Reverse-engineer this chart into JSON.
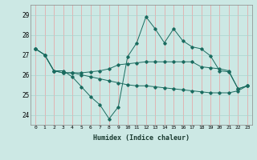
{
  "title": "",
  "xlabel": "Humidex (Indice chaleur)",
  "ylabel": "",
  "background_color": "#cce8e4",
  "grid_color_h": "#aad4cf",
  "grid_color_v": "#e8a0a0",
  "line_color": "#1a6b5f",
  "xlim": [
    -0.5,
    23.5
  ],
  "ylim": [
    23.5,
    29.5
  ],
  "yticks": [
    24,
    25,
    26,
    27,
    28,
    29
  ],
  "xticks": [
    0,
    1,
    2,
    3,
    4,
    5,
    6,
    7,
    8,
    9,
    10,
    11,
    12,
    13,
    14,
    15,
    16,
    17,
    18,
    19,
    20,
    21,
    22,
    23
  ],
  "series": [
    [
      27.3,
      27.0,
      26.2,
      26.2,
      25.9,
      25.4,
      24.9,
      24.5,
      23.8,
      24.4,
      26.9,
      27.6,
      28.9,
      28.3,
      27.6,
      28.3,
      27.7,
      27.4,
      27.3,
      26.95,
      26.2,
      26.15,
      25.3,
      25.45
    ],
    [
      27.3,
      27.0,
      26.2,
      26.1,
      26.1,
      26.1,
      26.15,
      26.2,
      26.3,
      26.5,
      26.55,
      26.6,
      26.65,
      26.65,
      26.65,
      26.65,
      26.65,
      26.65,
      26.4,
      26.35,
      26.3,
      26.2,
      25.3,
      25.45
    ],
    [
      27.3,
      27.0,
      26.2,
      26.1,
      26.1,
      26.0,
      25.9,
      25.8,
      25.7,
      25.6,
      25.5,
      25.45,
      25.45,
      25.4,
      25.35,
      25.3,
      25.25,
      25.2,
      25.15,
      25.1,
      25.1,
      25.1,
      25.2,
      25.45
    ]
  ]
}
